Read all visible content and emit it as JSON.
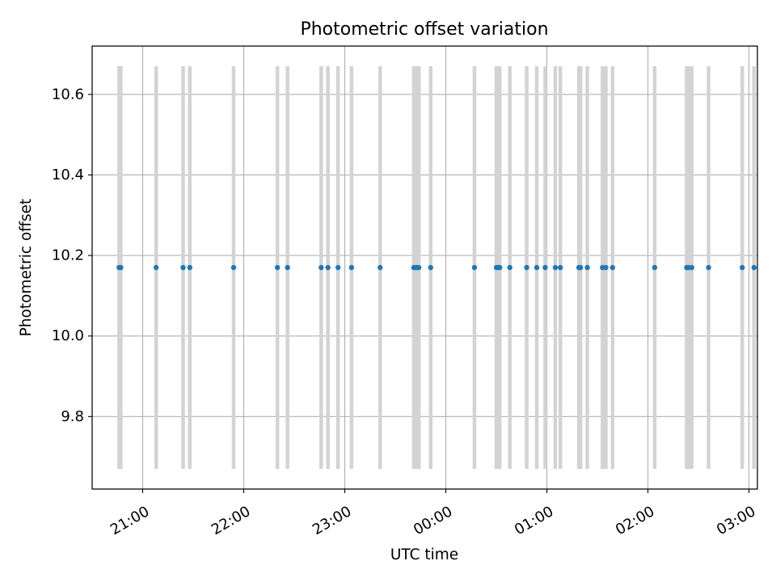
{
  "chart_data": {
    "type": "scatter",
    "title": "Photometric offset variation",
    "xlabel": "UTC time",
    "ylabel": "Photometric offset",
    "x_axis": "time",
    "xlim": [
      "20:30",
      "03:05"
    ],
    "ylim": [
      9.62,
      10.72
    ],
    "x_ticks": [
      "21:00",
      "22:00",
      "23:00",
      "00:00",
      "01:00",
      "02:00",
      "03:00"
    ],
    "y_ticks": [
      "9.8",
      "10.0",
      "10.2",
      "10.4",
      "10.6"
    ],
    "grid": true,
    "colors": {
      "points": "#1f77b4",
      "errorbars": "#d3d3d3",
      "grid": "#b0b0b0"
    },
    "error_range": [
      9.67,
      10.67
    ],
    "series": [
      {
        "x": [
          "20:46",
          "20:47",
          "21:08",
          "21:24",
          "21:28",
          "21:54",
          "22:20",
          "22:26",
          "22:46",
          "22:50",
          "22:56",
          "23:04",
          "23:21",
          "23:41",
          "23:42",
          "23:43",
          "23:44",
          "23:51",
          "00:17",
          "00:30",
          "00:31",
          "00:32",
          "00:38",
          "00:48",
          "00:54",
          "00:59",
          "01:05",
          "01:08",
          "01:19",
          "01:20",
          "01:24",
          "01:33",
          "01:35",
          "01:39",
          "02:04",
          "02:23",
          "02:24",
          "02:26",
          "02:36",
          "02:56",
          "03:03"
        ],
        "y": [
          10.17,
          10.17,
          10.17,
          10.17,
          10.17,
          10.17,
          10.17,
          10.17,
          10.17,
          10.17,
          10.17,
          10.17,
          10.17,
          10.17,
          10.17,
          10.17,
          10.17,
          10.17,
          10.17,
          10.17,
          10.17,
          10.17,
          10.17,
          10.17,
          10.17,
          10.17,
          10.17,
          10.17,
          10.17,
          10.17,
          10.17,
          10.17,
          10.17,
          10.17,
          10.17,
          10.17,
          10.17,
          10.17,
          10.17,
          10.17,
          10.17
        ]
      }
    ]
  }
}
